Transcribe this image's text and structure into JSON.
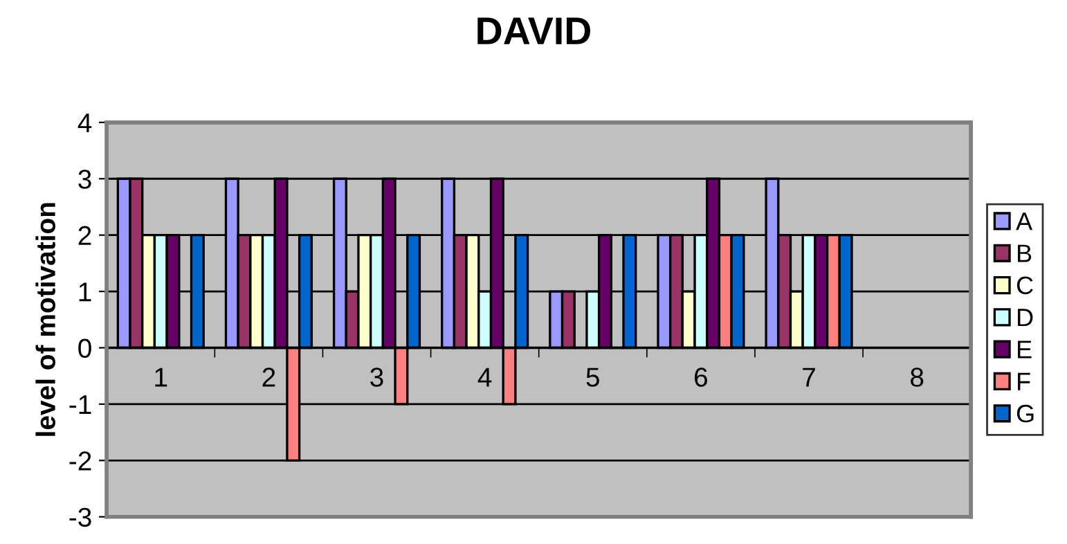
{
  "chart_data": {
    "type": "bar",
    "title": "DAVID",
    "ylabel": "level of motivation",
    "categories": [
      "1",
      "2",
      "3",
      "4",
      "5",
      "6",
      "7",
      "8"
    ],
    "series": [
      {
        "name": "A",
        "color": "#9999ff",
        "values": [
          3,
          3,
          3,
          3,
          1,
          2,
          3,
          null
        ]
      },
      {
        "name": "B",
        "color": "#993366",
        "values": [
          3,
          2,
          1,
          2,
          1,
          2,
          2,
          null
        ]
      },
      {
        "name": "C",
        "color": "#ffffcc",
        "values": [
          2,
          2,
          2,
          2,
          0,
          1,
          1,
          null
        ]
      },
      {
        "name": "D",
        "color": "#ccffff",
        "values": [
          2,
          2,
          2,
          1,
          1,
          2,
          2,
          null
        ]
      },
      {
        "name": "E",
        "color": "#660066",
        "values": [
          2,
          3,
          3,
          3,
          2,
          3,
          2,
          null
        ]
      },
      {
        "name": "F",
        "color": "#ff8080",
        "values": [
          0,
          -2,
          -1,
          -1,
          0,
          2,
          2,
          null
        ]
      },
      {
        "name": "G",
        "color": "#0066cc",
        "values": [
          2,
          2,
          2,
          2,
          2,
          2,
          2,
          null
        ]
      }
    ],
    "ylim": [
      -3,
      4
    ],
    "yticks": [
      -3,
      -2,
      -1,
      0,
      1,
      2,
      3,
      4
    ],
    "grid": "y",
    "legend": "right"
  }
}
